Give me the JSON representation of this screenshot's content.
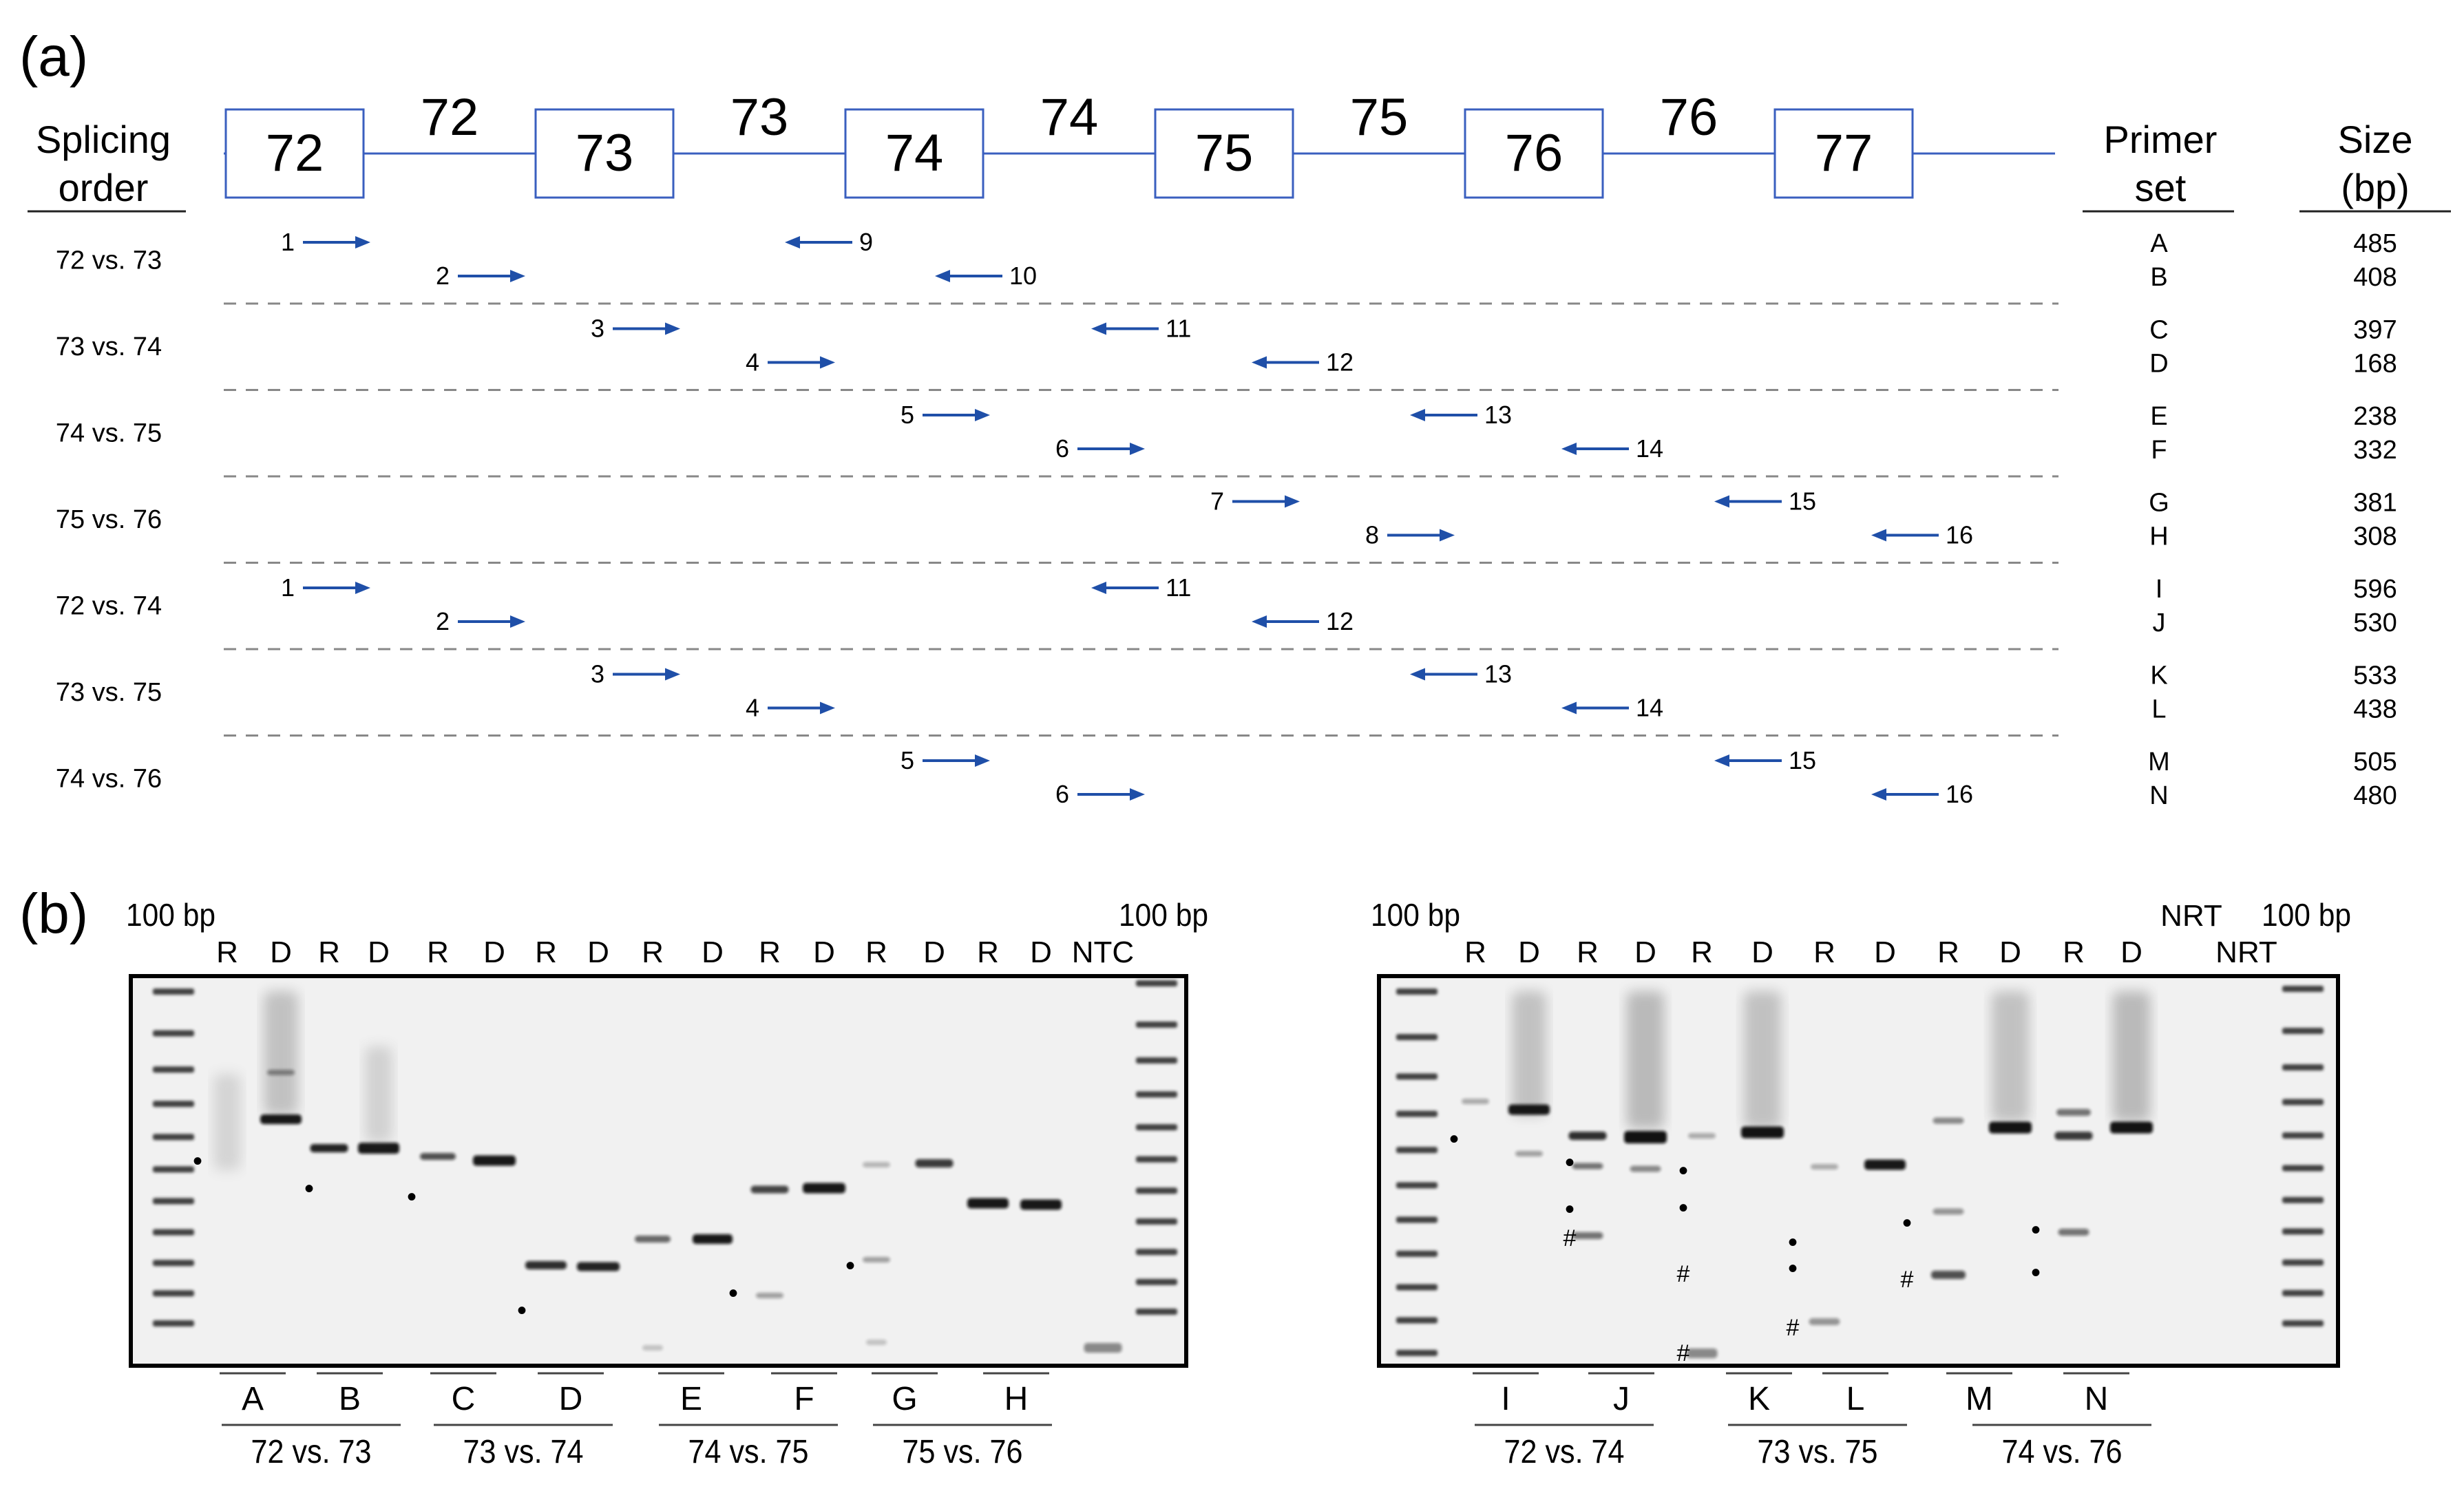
{
  "panel_a": {
    "label": "(a)",
    "splicing_header": [
      "Splicing",
      "order"
    ],
    "primer_header": [
      "Primer",
      "set"
    ],
    "size_header": [
      "Size",
      "(bp)"
    ],
    "exons": [
      "72",
      "73",
      "74",
      "75",
      "76",
      "77"
    ],
    "introns": [
      "72",
      "73",
      "74",
      "75",
      "76"
    ],
    "rows": [
      {
        "order": "72 vs. 73",
        "sets": [
          "A",
          "B"
        ],
        "sizes": [
          "485",
          "408"
        ],
        "fwd": [
          [
            "1",
            "72"
          ],
          [
            "2",
            "72"
          ]
        ],
        "rev": [
          [
            "9",
            "73"
          ],
          [
            "10",
            "74"
          ]
        ]
      },
      {
        "order": "73 vs. 74",
        "sets": [
          "C",
          "D"
        ],
        "sizes": [
          "397",
          "168"
        ],
        "fwd": [
          [
            "3",
            "73"
          ],
          [
            "4",
            "73"
          ]
        ],
        "rev": [
          [
            "11",
            "74"
          ],
          [
            "12",
            "75"
          ]
        ]
      },
      {
        "order": "74 vs. 75",
        "sets": [
          "E",
          "F"
        ],
        "sizes": [
          "238",
          "332"
        ],
        "fwd": [
          [
            "5",
            "74"
          ],
          [
            "6",
            "74"
          ]
        ],
        "rev": [
          [
            "13",
            "75"
          ],
          [
            "14",
            "76"
          ]
        ]
      },
      {
        "order": "75 vs. 76",
        "sets": [
          "G",
          "H"
        ],
        "sizes": [
          "381",
          "308"
        ],
        "fwd": [
          [
            "7",
            "75"
          ],
          [
            "8",
            "75"
          ]
        ],
        "rev": [
          [
            "15",
            "76"
          ],
          [
            "16",
            "77"
          ]
        ]
      },
      {
        "order": "72 vs. 74",
        "sets": [
          "I",
          "J"
        ],
        "sizes": [
          "596",
          "530"
        ],
        "fwd": [
          [
            "1",
            "72"
          ],
          [
            "2",
            "72"
          ]
        ],
        "rev": [
          [
            "11",
            "74"
          ],
          [
            "12",
            "75"
          ]
        ]
      },
      {
        "order": "73 vs. 75",
        "sets": [
          "K",
          "L"
        ],
        "sizes": [
          "533",
          "438"
        ],
        "fwd": [
          [
            "3",
            "73"
          ],
          [
            "4",
            "73"
          ]
        ],
        "rev": [
          [
            "13",
            "75"
          ],
          [
            "14",
            "76"
          ]
        ]
      },
      {
        "order": "74 vs. 76",
        "sets": [
          "M",
          "N"
        ],
        "sizes": [
          "505",
          "480"
        ],
        "fwd": [
          [
            "5",
            "74"
          ],
          [
            "6",
            "74"
          ]
        ],
        "rev": [
          [
            "15",
            "76"
          ],
          [
            "16",
            "77"
          ]
        ]
      }
    ]
  },
  "panel_b": {
    "label": "(b)",
    "ladder_label": "100 bp",
    "gel1": {
      "lanes": [
        "R",
        "D",
        "R",
        "D",
        "R",
        "D",
        "R",
        "D",
        "R",
        "D",
        "R",
        "D",
        "R",
        "D",
        "R",
        "D",
        "NTC"
      ],
      "sets": [
        "A",
        "B",
        "C",
        "D",
        "E",
        "F",
        "G",
        "H"
      ],
      "groups": [
        "72 vs. 73",
        "73 vs. 74",
        "74 vs. 75",
        "75 vs. 76"
      ]
    },
    "gel2": {
      "lanes": [
        "R",
        "D",
        "R",
        "D",
        "R",
        "D",
        "R",
        "D",
        "R",
        "D",
        "R",
        "D",
        "NRT",
        "NRT"
      ],
      "sets": [
        "I",
        "J",
        "K",
        "L",
        "M",
        "N"
      ],
      "groups": [
        "72 vs. 74",
        "73 vs. 75",
        "74 vs. 76"
      ]
    },
    "marker_dot": "•",
    "marker_hash": "#"
  },
  "colors": {
    "arrow": "#1f4fa8",
    "exon_line": "#3a5fbf",
    "gel_bg": "#f1f1f1",
    "band": "#111111"
  }
}
